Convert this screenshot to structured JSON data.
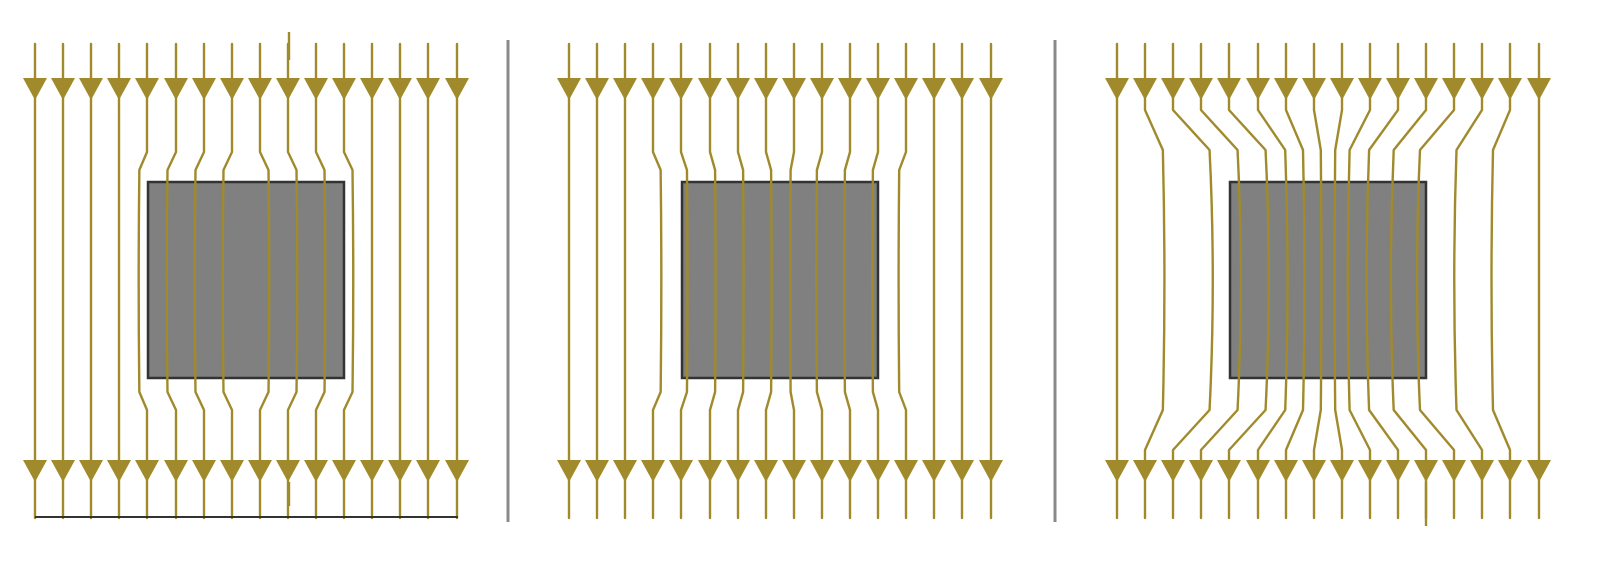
{
  "diagram": {
    "type": "magnetic-field-lines-through-material",
    "colors": {
      "field_line": "#a08a2c",
      "block_fill": "#808080",
      "block_border": "#333333",
      "divider": "#8a8a8a",
      "ground_line": "#333333",
      "background": "#ffffff"
    },
    "panels": [
      {
        "id": "panel-1",
        "field_effect": "slight-concentration",
        "arrow_direction": "down",
        "lines": 16
      },
      {
        "id": "panel-2",
        "field_effect": "slight-concentration",
        "arrow_direction": "down",
        "lines": 16
      },
      {
        "id": "panel-3",
        "field_effect": "strong-concentration",
        "arrow_direction": "down",
        "lines": 16
      }
    ]
  }
}
